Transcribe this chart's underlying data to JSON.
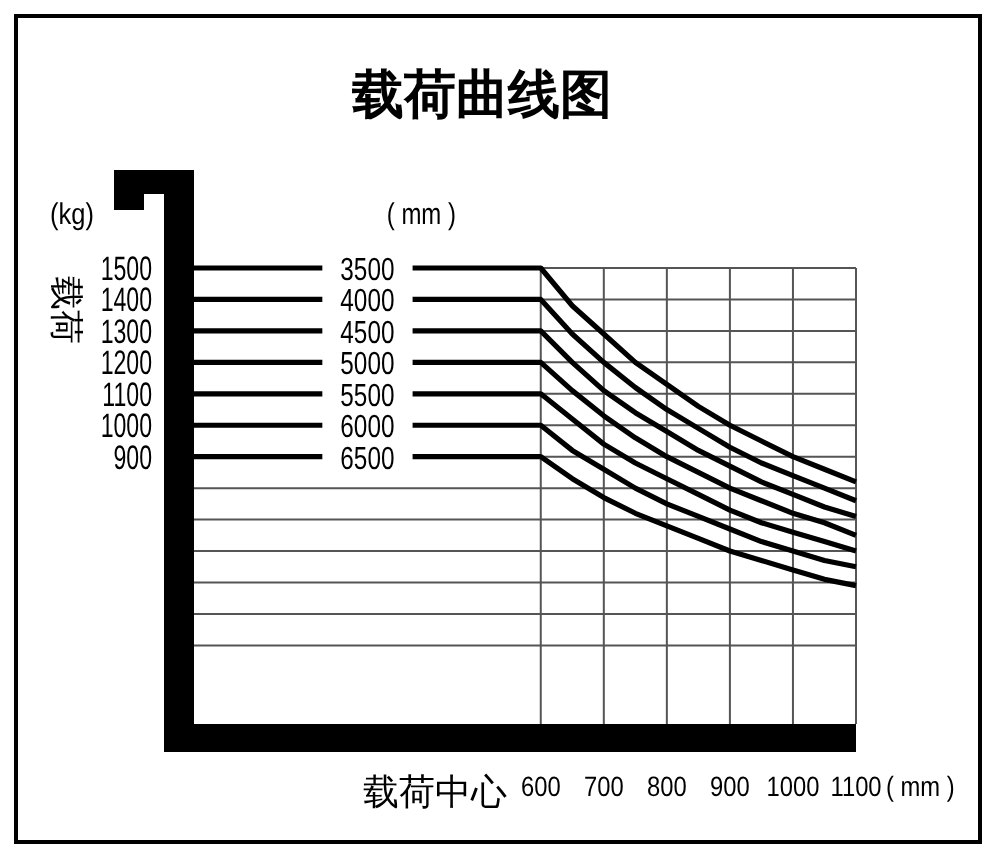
{
  "chart_data": {
    "type": "line",
    "title": "载荷曲线图",
    "xlabel": "载荷中心",
    "ylabel": "载荷",
    "legend_title": "( mm )",
    "annotations": [
      "(kg)",
      "( mm )"
    ],
    "x": [
      50,
      600,
      650,
      700,
      750,
      800,
      850,
      900,
      950,
      1000,
      1050,
      1100
    ],
    "series": [
      {
        "name": "3500",
        "color": "#000000",
        "values": [
          1500,
          1500,
          1380,
          1290,
          1200,
          1130,
          1060,
          1000,
          950,
          900,
          860,
          820
        ]
      },
      {
        "name": "4000",
        "color": "#000000",
        "values": [
          1400,
          1400,
          1290,
          1200,
          1120,
          1050,
          990,
          930,
          880,
          840,
          800,
          760
        ]
      },
      {
        "name": "4500",
        "color": "#000000",
        "values": [
          1300,
          1300,
          1200,
          1110,
          1040,
          980,
          920,
          870,
          820,
          780,
          740,
          710
        ]
      },
      {
        "name": "5000",
        "color": "#000000",
        "values": [
          1200,
          1200,
          1110,
          1030,
          960,
          900,
          850,
          800,
          760,
          720,
          690,
          650
        ]
      },
      {
        "name": "5500",
        "color": "#000000",
        "values": [
          1100,
          1100,
          1020,
          940,
          880,
          830,
          780,
          730,
          690,
          660,
          630,
          600
        ]
      },
      {
        "name": "6000",
        "color": "#000000",
        "values": [
          1000,
          1000,
          920,
          860,
          800,
          750,
          710,
          670,
          630,
          600,
          570,
          550
        ]
      },
      {
        "name": "6500",
        "color": "#000000",
        "values": [
          900,
          900,
          830,
          770,
          720,
          680,
          640,
          600,
          570,
          540,
          510,
          490
        ]
      }
    ],
    "xlim": [
      50,
      1100
    ],
    "ylim": [
      50,
      1500
    ],
    "xticks": [
      600,
      700,
      800,
      900,
      1000,
      1100
    ],
    "yticks": [
      {
        "value": 300,
        "label": null
      },
      {
        "value": 400,
        "label": null
      },
      {
        "value": 500,
        "label": null
      },
      {
        "value": 600,
        "label": null
      },
      {
        "value": 700,
        "label": null
      },
      {
        "value": 800,
        "label": null
      },
      900,
      1000,
      1100,
      1200,
      1300,
      1400,
      1500
    ],
    "grid": true
  }
}
